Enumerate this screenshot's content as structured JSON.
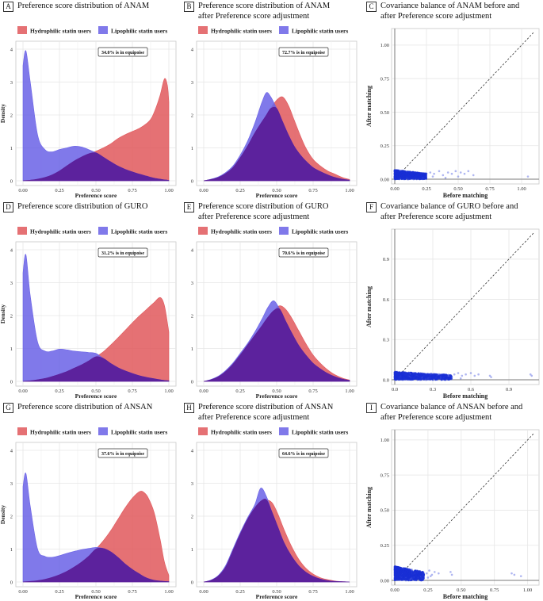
{
  "legend": {
    "hydrophilic": "Hydrophilic statin users",
    "lipophilic": "Lipophilic statin users"
  },
  "colors": {
    "hydrophilic": "#e0585c",
    "lipophilic": "#6a62e6",
    "overlap": "#5b1f9a",
    "scatter": "#1a2fd6",
    "grid": "#e6e6e6",
    "panel_border": "#c8c8c8"
  },
  "panels": [
    {
      "label": "A",
      "title": [
        "Preference score distribution of ANAM"
      ]
    },
    {
      "label": "B",
      "title": [
        "Preference score distribution of ANAM",
        "after Preference score adjustment"
      ]
    },
    {
      "label": "C",
      "title": [
        "Covariance balance of ANAM before and",
        "after Preference score adjustment"
      ]
    },
    {
      "label": "D",
      "title": [
        "Preference score distribution of GURO"
      ]
    },
    {
      "label": "E",
      "title": [
        "Preference score distribution of GURO",
        "after Preference score adjustment"
      ]
    },
    {
      "label": "F",
      "title": [
        "Covariance balance of GURO before and",
        "after Preference score adjustment"
      ]
    },
    {
      "label": "G",
      "title": [
        "Preference score distribution of ANSAN"
      ]
    },
    {
      "label": "H",
      "title": [
        "Preference score distribution of ANSAN",
        "after Preference score adjustment"
      ]
    },
    {
      "label": "I",
      "title": [
        "Covariance balance of ANSAN before and",
        "after Preference score adjustment"
      ]
    }
  ],
  "chart_data": [
    {
      "panel": "A",
      "type": "area",
      "xlabel": "Preference score",
      "ylabel": "Density",
      "xlim": [
        0,
        1
      ],
      "ylim": [
        0,
        4
      ],
      "xticks": [
        "0.00",
        "0.25",
        "0.50",
        "0.75",
        "1.00"
      ],
      "yticks": [
        "0",
        "1",
        "2",
        "3",
        "4"
      ],
      "annotation": "34.0% is in equipoise",
      "x": [
        0.0,
        0.02,
        0.05,
        0.1,
        0.15,
        0.2,
        0.25,
        0.3,
        0.35,
        0.4,
        0.45,
        0.5,
        0.55,
        0.6,
        0.65,
        0.7,
        0.75,
        0.8,
        0.85,
        0.88,
        0.91,
        0.94,
        0.97,
        0.99,
        1.0
      ],
      "series": [
        {
          "name": "Hydrophilic statin users",
          "values": [
            0,
            0.01,
            0.02,
            0.05,
            0.1,
            0.18,
            0.3,
            0.45,
            0.6,
            0.72,
            0.82,
            0.9,
            1.0,
            1.12,
            1.28,
            1.4,
            1.5,
            1.6,
            1.75,
            1.9,
            2.2,
            2.6,
            3.1,
            2.9,
            2.4
          ]
        },
        {
          "name": "Lipophilic statin users",
          "values": [
            3.5,
            3.95,
            3.0,
            1.4,
            0.95,
            0.88,
            0.95,
            1.0,
            1.05,
            1.03,
            0.95,
            0.85,
            0.72,
            0.58,
            0.45,
            0.35,
            0.27,
            0.2,
            0.14,
            0.1,
            0.07,
            0.05,
            0.03,
            0.02,
            0.01
          ]
        }
      ]
    },
    {
      "panel": "B",
      "type": "area",
      "xlabel": "Preference score",
      "ylabel": "",
      "xlim": [
        0,
        1
      ],
      "ylim": [
        0,
        4
      ],
      "xticks": [
        "0.00",
        "0.25",
        "0.50",
        "0.75",
        "1.00"
      ],
      "yticks": [
        "0",
        "1",
        "2",
        "3",
        "4"
      ],
      "annotation": "72.7% is in equipoise",
      "x": [
        0.0,
        0.05,
        0.1,
        0.15,
        0.2,
        0.25,
        0.3,
        0.35,
        0.4,
        0.43,
        0.46,
        0.5,
        0.54,
        0.58,
        0.62,
        0.66,
        0.7,
        0.75,
        0.8,
        0.85,
        0.9,
        0.95,
        1.0
      ],
      "series": [
        {
          "name": "Hydrophilic statin users",
          "values": [
            0,
            0.04,
            0.1,
            0.22,
            0.4,
            0.7,
            1.05,
            1.45,
            1.8,
            2.0,
            2.2,
            2.45,
            2.55,
            2.3,
            1.85,
            1.4,
            1.0,
            0.65,
            0.45,
            0.3,
            0.2,
            0.1,
            0.04
          ]
        },
        {
          "name": "Lipophilic statin users",
          "values": [
            0,
            0.05,
            0.12,
            0.25,
            0.45,
            0.78,
            1.2,
            1.75,
            2.4,
            2.68,
            2.55,
            2.2,
            1.8,
            1.4,
            1.05,
            0.8,
            0.6,
            0.4,
            0.28,
            0.18,
            0.1,
            0.05,
            0.02
          ]
        }
      ]
    },
    {
      "panel": "C",
      "type": "scatter",
      "xlabel": "Before matching",
      "ylabel": "After matching",
      "xlim": [
        0,
        1.1
      ],
      "ylim": [
        0,
        1.1
      ],
      "xticks": [
        "0.00",
        "0.25",
        "0.50",
        "0.75",
        "1.00"
      ],
      "yticks": [
        "0.00",
        "0.25",
        "0.50",
        "0.75",
        "1.00"
      ],
      "tick_values_x": [
        0,
        0.25,
        0.5,
        0.75,
        1.0
      ],
      "tick_values_y": [
        0,
        0.25,
        0.5,
        0.75,
        1.0
      ],
      "cluster": {
        "x_max": 0.25,
        "y_max": 0.07
      },
      "points": [
        [
          0.28,
          0.05
        ],
        [
          0.31,
          0.04
        ],
        [
          0.35,
          0.06
        ],
        [
          0.38,
          0.03
        ],
        [
          0.42,
          0.05
        ],
        [
          0.45,
          0.04
        ],
        [
          0.48,
          0.06
        ],
        [
          0.52,
          0.05
        ],
        [
          0.55,
          0.04
        ],
        [
          0.58,
          0.06
        ],
        [
          0.62,
          0.03
        ],
        [
          1.05,
          0.02
        ],
        [
          0.3,
          0.02
        ],
        [
          0.4,
          0.01
        ],
        [
          0.5,
          0.02
        ]
      ]
    },
    {
      "panel": "D",
      "type": "area",
      "xlabel": "Preference score",
      "ylabel": "Density",
      "xlim": [
        0,
        1
      ],
      "ylim": [
        0,
        4
      ],
      "xticks": [
        "0.00",
        "0.25",
        "0.50",
        "0.75",
        "1.00"
      ],
      "yticks": [
        "0",
        "1",
        "2",
        "3",
        "4"
      ],
      "annotation": "31.2% is in equipoise",
      "x": [
        0.0,
        0.02,
        0.05,
        0.1,
        0.15,
        0.2,
        0.25,
        0.3,
        0.35,
        0.4,
        0.45,
        0.5,
        0.55,
        0.6,
        0.65,
        0.7,
        0.75,
        0.8,
        0.85,
        0.9,
        0.94,
        0.97,
        1.0
      ],
      "series": [
        {
          "name": "Hydrophilic statin users",
          "values": [
            0,
            0.01,
            0.02,
            0.05,
            0.09,
            0.15,
            0.22,
            0.3,
            0.4,
            0.5,
            0.62,
            0.75,
            0.9,
            1.1,
            1.32,
            1.55,
            1.78,
            2.0,
            2.2,
            2.4,
            2.55,
            2.3,
            1.5
          ]
        },
        {
          "name": "Lipophilic statin users",
          "values": [
            3.3,
            3.85,
            2.6,
            1.2,
            0.92,
            0.92,
            0.98,
            0.96,
            0.92,
            0.9,
            0.88,
            0.85,
            0.7,
            0.55,
            0.42,
            0.32,
            0.24,
            0.17,
            0.12,
            0.08,
            0.05,
            0.03,
            0.02
          ]
        }
      ]
    },
    {
      "panel": "E",
      "type": "area",
      "xlabel": "Preference score",
      "ylabel": "",
      "xlim": [
        0,
        1
      ],
      "ylim": [
        0,
        4
      ],
      "xticks": [
        "0.00",
        "0.25",
        "0.50",
        "0.75",
        "1.00"
      ],
      "yticks": [
        "0",
        "1",
        "2",
        "3",
        "4"
      ],
      "annotation": "70.6% is in equipoise",
      "x": [
        0.0,
        0.05,
        0.1,
        0.15,
        0.2,
        0.25,
        0.3,
        0.35,
        0.4,
        0.44,
        0.48,
        0.52,
        0.56,
        0.6,
        0.65,
        0.7,
        0.75,
        0.8,
        0.85,
        0.9,
        0.95,
        1.0
      ],
      "series": [
        {
          "name": "Hydrophilic statin users",
          "values": [
            0,
            0.05,
            0.14,
            0.3,
            0.52,
            0.8,
            1.1,
            1.4,
            1.7,
            1.95,
            2.15,
            2.3,
            2.2,
            1.95,
            1.55,
            1.15,
            0.8,
            0.55,
            0.35,
            0.2,
            0.1,
            0.04
          ]
        },
        {
          "name": "Lipophilic statin users",
          "values": [
            0,
            0.06,
            0.16,
            0.33,
            0.56,
            0.85,
            1.15,
            1.5,
            1.9,
            2.25,
            2.45,
            2.2,
            1.85,
            1.5,
            1.1,
            0.8,
            0.55,
            0.38,
            0.24,
            0.14,
            0.07,
            0.03
          ]
        }
      ]
    },
    {
      "panel": "F",
      "type": "scatter",
      "xlabel": "Before matching",
      "ylabel": "After matching",
      "xlim": [
        0,
        1.1
      ],
      "ylim": [
        0,
        1.1
      ],
      "xticks": [
        "0.0",
        "0.3",
        "0.6",
        "0.9"
      ],
      "yticks": [
        "0.0",
        "0.3",
        "0.6",
        "0.9"
      ],
      "tick_values_x": [
        0,
        0.3,
        0.6,
        0.9
      ],
      "tick_values_y": [
        0,
        0.3,
        0.6,
        0.9
      ],
      "cluster": {
        "x_max": 0.45,
        "y_max": 0.06
      },
      "points": [
        [
          0.47,
          0.04
        ],
        [
          0.5,
          0.05
        ],
        [
          0.53,
          0.03
        ],
        [
          0.56,
          0.04
        ],
        [
          0.6,
          0.05
        ],
        [
          0.63,
          0.03
        ],
        [
          0.66,
          0.04
        ],
        [
          0.75,
          0.03
        ],
        [
          0.76,
          0.02
        ],
        [
          1.07,
          0.04
        ],
        [
          1.08,
          0.03
        ],
        [
          0.52,
          0.01
        ]
      ]
    },
    {
      "panel": "G",
      "type": "area",
      "xlabel": "Preference score",
      "ylabel": "Density",
      "xlim": [
        0,
        1
      ],
      "ylim": [
        0,
        4
      ],
      "xticks": [
        "0.00",
        "0.25",
        "0.50",
        "0.75",
        "1.00"
      ],
      "yticks": [
        "0",
        "1",
        "2",
        "3",
        "4"
      ],
      "annotation": "37.6% is in equipoise",
      "x": [
        0.0,
        0.02,
        0.05,
        0.1,
        0.15,
        0.2,
        0.25,
        0.3,
        0.35,
        0.4,
        0.45,
        0.5,
        0.55,
        0.6,
        0.65,
        0.7,
        0.75,
        0.8,
        0.83,
        0.86,
        0.9,
        0.94,
        0.97,
        1.0
      ],
      "series": [
        {
          "name": "Hydrophilic statin users",
          "values": [
            0,
            0.01,
            0.02,
            0.04,
            0.08,
            0.14,
            0.22,
            0.32,
            0.45,
            0.6,
            0.78,
            1.0,
            1.25,
            1.55,
            1.9,
            2.25,
            2.55,
            2.75,
            2.72,
            2.55,
            2.1,
            1.3,
            0.6,
            0.2
          ]
        },
        {
          "name": "Lipophilic statin users",
          "values": [
            2.9,
            3.3,
            2.3,
            1.0,
            0.78,
            0.75,
            0.8,
            0.87,
            0.93,
            0.98,
            1.02,
            1.05,
            1.02,
            0.92,
            0.75,
            0.55,
            0.38,
            0.24,
            0.16,
            0.1,
            0.05,
            0.03,
            0.02,
            0.01
          ]
        }
      ]
    },
    {
      "panel": "H",
      "type": "area",
      "xlabel": "Preference score",
      "ylabel": "",
      "xlim": [
        0,
        1
      ],
      "ylim": [
        0,
        4
      ],
      "xticks": [
        "0.00",
        "0.25",
        "0.50",
        "0.75",
        "1.00"
      ],
      "yticks": [
        "0",
        "1",
        "2",
        "3",
        "4"
      ],
      "annotation": "64.6% is in equipoise",
      "x": [
        0.0,
        0.05,
        0.1,
        0.15,
        0.2,
        0.25,
        0.3,
        0.35,
        0.39,
        0.43,
        0.47,
        0.51,
        0.55,
        0.6,
        0.65,
        0.7,
        0.75,
        0.8,
        0.85,
        0.9,
        0.95,
        1.0
      ],
      "series": [
        {
          "name": "Hydrophilic statin users",
          "values": [
            0,
            0.05,
            0.18,
            0.45,
            0.95,
            1.45,
            1.9,
            2.25,
            2.45,
            2.5,
            2.4,
            2.05,
            1.6,
            1.1,
            0.7,
            0.42,
            0.24,
            0.13,
            0.07,
            0.03,
            0.01,
            0
          ]
        },
        {
          "name": "Lipophilic statin users",
          "values": [
            0,
            0.06,
            0.2,
            0.5,
            1.0,
            1.5,
            1.95,
            2.35,
            2.85,
            2.6,
            2.1,
            1.65,
            1.2,
            0.8,
            0.5,
            0.3,
            0.17,
            0.09,
            0.04,
            0.02,
            0.01,
            0
          ]
        }
      ]
    },
    {
      "panel": "I",
      "type": "scatter",
      "xlabel": "Before matching",
      "ylabel": "After matching",
      "xlim": [
        0,
        1.05
      ],
      "ylim": [
        0,
        1.05
      ],
      "xticks": [
        "0.00",
        "0.25",
        "0.50",
        "0.75",
        "1.00"
      ],
      "yticks": [
        "0.00",
        "0.25",
        "0.50",
        "0.75",
        "1.00"
      ],
      "tick_values_x": [
        0,
        0.25,
        0.5,
        0.75,
        1.0
      ],
      "tick_values_y": [
        0,
        0.25,
        0.5,
        0.75,
        1.0
      ],
      "cluster": {
        "x_max": 0.22,
        "y_max": 0.1
      },
      "points": [
        [
          0.24,
          0.05
        ],
        [
          0.26,
          0.07
        ],
        [
          0.28,
          0.04
        ],
        [
          0.3,
          0.06
        ],
        [
          0.33,
          0.05
        ],
        [
          0.42,
          0.06
        ],
        [
          0.43,
          0.04
        ],
        [
          0.88,
          0.05
        ],
        [
          0.9,
          0.04
        ],
        [
          0.95,
          0.03
        ],
        [
          0.25,
          0.02
        ],
        [
          0.27,
          0.03
        ]
      ]
    }
  ]
}
